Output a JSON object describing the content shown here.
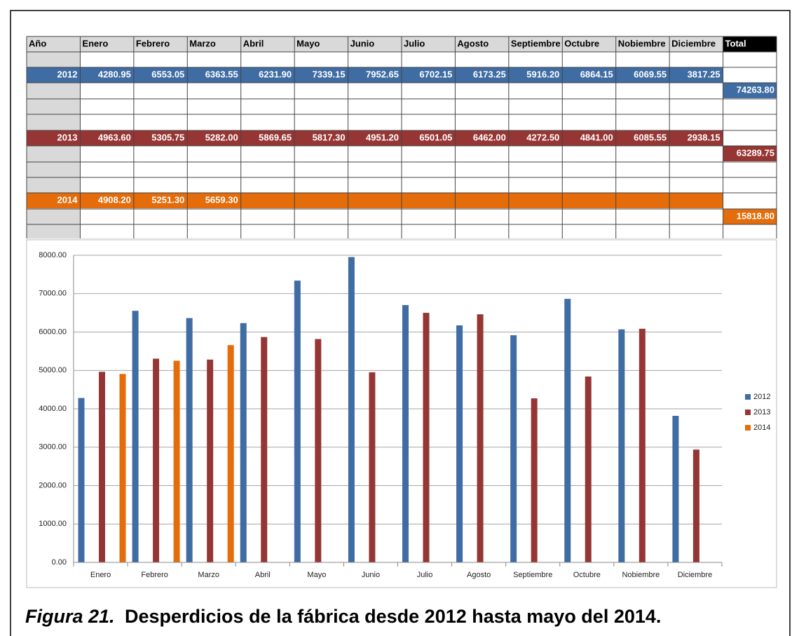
{
  "table": {
    "headers": {
      "year": "Año",
      "total": "Total"
    },
    "totals": [
      "74263.80",
      "63289.75",
      "15818.80"
    ]
  },
  "chart_data": {
    "type": "bar",
    "categories": [
      "Enero",
      "Febrero",
      "Marzo",
      "Abril",
      "Mayo",
      "Junio",
      "Julio",
      "Agosto",
      "Septiembre",
      "Octubre",
      "Nobiembre",
      "Diciembre"
    ],
    "series": [
      {
        "name": "2012",
        "color": "#3f6ca3",
        "values": [
          4280.95,
          6553.05,
          6363.55,
          6231.9,
          7339.15,
          7952.65,
          6702.15,
          6173.25,
          5916.2,
          6864.15,
          6069.55,
          3817.25
        ],
        "value_labels": [
          "4280.95",
          "6553.05",
          "6363.55",
          "6231.90",
          "7339.15",
          "7952.65",
          "6702.15",
          "6173.25",
          "5916.20",
          "6864.15",
          "6069.55",
          "3817.25"
        ]
      },
      {
        "name": "2013",
        "color": "#963634",
        "values": [
          4963.6,
          5305.75,
          5282,
          5869.65,
          5817.3,
          4951.2,
          6501.05,
          6462,
          4272.5,
          4841,
          6085.55,
          2938.15
        ],
        "value_labels": [
          "4963.60",
          "5305.75",
          "5282.00",
          "5869.65",
          "5817.30",
          "4951.20",
          "6501.05",
          "6462.00",
          "4272.50",
          "4841.00",
          "6085.55",
          "2938.15"
        ]
      },
      {
        "name": "2014",
        "color": "#e46c0a",
        "values": [
          4908.2,
          5251.3,
          5659.3,
          null,
          null,
          null,
          null,
          null,
          null,
          null,
          null,
          null
        ],
        "value_labels": [
          "4908.20",
          "5251.30",
          "5659.30",
          null,
          null,
          null,
          null,
          null,
          null,
          null,
          null,
          null
        ]
      }
    ],
    "ylim": [
      0,
      8000
    ],
    "yticks": [
      {
        "value": 0,
        "label": "0.00"
      },
      {
        "value": 1000,
        "label": "1000.00"
      },
      {
        "value": 2000,
        "label": "2000.00"
      },
      {
        "value": 3000,
        "label": "3000.00"
      },
      {
        "value": 4000,
        "label": "4000.00"
      },
      {
        "value": 5000,
        "label": "5000.00"
      },
      {
        "value": 6000,
        "label": "6000.00"
      },
      {
        "value": 7000,
        "label": "7000.00"
      },
      {
        "value": 8000,
        "label": "8000.00"
      }
    ],
    "grid": true,
    "legend": "right"
  },
  "caption": {
    "label": "Figura 21.",
    "text": "Desperdicios de la fábrica desde 2012 hasta mayo del 2014."
  }
}
